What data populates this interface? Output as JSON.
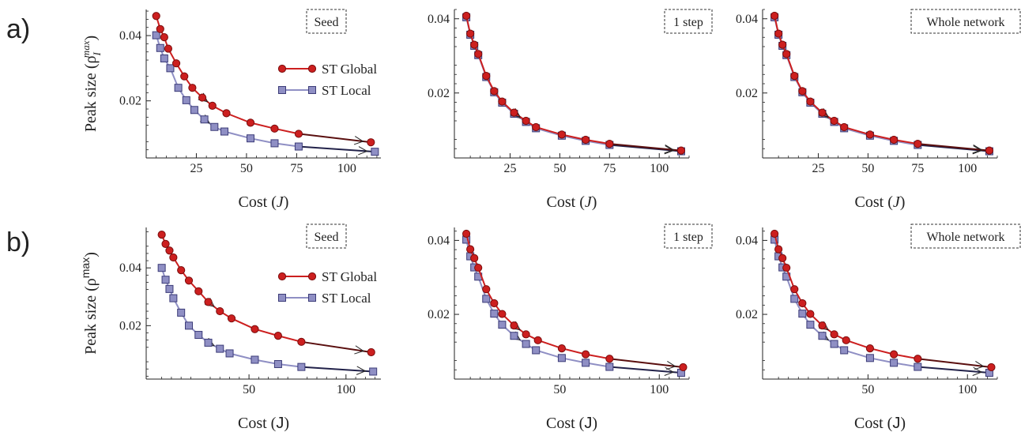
{
  "row_labels": [
    "a)",
    "b)"
  ],
  "colors": {
    "global": "#cc1f1f",
    "global_edge": "#7a0d0d",
    "local": "#8f8fc4",
    "local_edge": "#3c3c78",
    "line_end": "#222222"
  },
  "chart_data": [
    {
      "type": "line",
      "row": "a",
      "panel_label": "Seed",
      "xlabel": "Cost (J)",
      "ylabel": "Peak size (ρ_I^max)",
      "xlim": [
        0,
        117
      ],
      "ylim": [
        0.0025,
        0.048
      ],
      "xticks": [
        25,
        50,
        75,
        100
      ],
      "yticks": [
        0.02,
        0.04
      ],
      "legend": [
        "ST Global",
        "ST Local"
      ],
      "series": [
        {
          "name": "ST Global",
          "x": [
            5,
            7,
            9,
            11,
            15,
            19,
            23,
            28,
            33,
            40,
            52,
            64,
            76,
            112
          ],
          "y": [
            0.046,
            0.042,
            0.0395,
            0.036,
            0.0315,
            0.0275,
            0.024,
            0.021,
            0.0185,
            0.0162,
            0.0133,
            0.0115,
            0.0099,
            0.0073
          ]
        },
        {
          "name": "ST Local",
          "x": [
            5,
            7,
            9,
            12,
            16,
            20,
            24,
            29,
            34,
            39,
            52,
            64,
            76,
            114
          ],
          "y": [
            0.0401,
            0.0362,
            0.033,
            0.03,
            0.024,
            0.0202,
            0.0172,
            0.0143,
            0.012,
            0.0106,
            0.0085,
            0.007,
            0.006,
            0.0044
          ]
        }
      ]
    },
    {
      "type": "line",
      "row": "a",
      "panel_label": "1 step",
      "xlabel": "Cost (J)",
      "ylabel": "",
      "xlim": [
        -3,
        115
      ],
      "ylim": [
        0.0025,
        0.0425
      ],
      "xticks": [
        25,
        50,
        75,
        100
      ],
      "yticks": [
        0.02,
        0.04
      ],
      "series": [
        {
          "name": "ST Global",
          "x": [
            3,
            5,
            7,
            9,
            13,
            17,
            21,
            27,
            33,
            38,
            51,
            63,
            75,
            111
          ],
          "y": [
            0.0408,
            0.036,
            0.033,
            0.0305,
            0.0246,
            0.0205,
            0.0177,
            0.0147,
            0.0125,
            0.0108,
            0.0088,
            0.0074,
            0.0063,
            0.0045
          ]
        },
        {
          "name": "ST Local",
          "x": [
            3,
            5,
            7,
            9,
            13,
            17,
            21,
            27,
            33,
            38,
            51,
            63,
            75,
            111
          ],
          "y": [
            0.0404,
            0.0357,
            0.0327,
            0.0302,
            0.0243,
            0.0202,
            0.0174,
            0.0144,
            0.0122,
            0.0105,
            0.0085,
            0.0071,
            0.006,
            0.0043
          ]
        }
      ]
    },
    {
      "type": "line",
      "row": "a",
      "panel_label": "Whole network",
      "xlabel": "Cost (J)",
      "ylabel": "",
      "xlim": [
        -3,
        115
      ],
      "ylim": [
        0.0025,
        0.0425
      ],
      "xticks": [
        25,
        50,
        75,
        100
      ],
      "yticks": [
        0.02,
        0.04
      ],
      "series": [
        {
          "name": "ST Global",
          "x": [
            3,
            5,
            7,
            9,
            13,
            17,
            21,
            27,
            33,
            38,
            51,
            63,
            75,
            111
          ],
          "y": [
            0.0408,
            0.036,
            0.033,
            0.0305,
            0.0246,
            0.0205,
            0.0177,
            0.0147,
            0.0125,
            0.0108,
            0.0088,
            0.0074,
            0.0063,
            0.0045
          ]
        },
        {
          "name": "ST Local",
          "x": [
            3,
            5,
            7,
            9,
            13,
            17,
            21,
            27,
            33,
            38,
            51,
            63,
            75,
            111
          ],
          "y": [
            0.0404,
            0.0357,
            0.0327,
            0.0302,
            0.0243,
            0.0202,
            0.0174,
            0.0144,
            0.0122,
            0.0105,
            0.0085,
            0.0071,
            0.006,
            0.0043
          ]
        }
      ]
    },
    {
      "type": "line",
      "row": "b",
      "panel_label": "Seed",
      "xlabel": "Cost (J)",
      "ylabel": "Peak size (ρ_I^max)",
      "xlim": [
        -3,
        118
      ],
      "ylim": [
        0.0015,
        0.054
      ],
      "xticks": [
        50,
        100
      ],
      "yticks": [
        0.02,
        0.04
      ],
      "legend": [
        "ST Global",
        "ST Local"
      ],
      "series": [
        {
          "name": "ST Global",
          "x": [
            5,
            7,
            9,
            11,
            15,
            19,
            24,
            29,
            35,
            41,
            53,
            65,
            77,
            113
          ],
          "y": [
            0.0515,
            0.0483,
            0.046,
            0.0436,
            0.0392,
            0.0356,
            0.0319,
            0.0282,
            0.025,
            0.0225,
            0.0188,
            0.0165,
            0.0144,
            0.0108
          ]
        },
        {
          "name": "ST Local",
          "x": [
            5,
            7,
            9,
            11,
            15,
            19,
            24,
            29,
            35,
            40,
            53,
            65,
            77,
            114
          ],
          "y": [
            0.04,
            0.0359,
            0.0327,
            0.0295,
            0.0245,
            0.02,
            0.0168,
            0.0141,
            0.012,
            0.0104,
            0.0082,
            0.0067,
            0.0057,
            0.0041
          ]
        }
      ]
    },
    {
      "type": "line",
      "row": "b",
      "panel_label": "1 step",
      "xlabel": "Cost (J)",
      "ylabel": "",
      "xlim": [
        -3,
        115
      ],
      "ylim": [
        0.0025,
        0.0435
      ],
      "xticks": [
        50,
        100
      ],
      "yticks": [
        0.02,
        0.04
      ],
      "series": [
        {
          "name": "ST Global",
          "x": [
            3,
            5,
            7,
            9,
            13,
            17,
            21,
            27,
            33,
            39,
            51,
            63,
            75,
            112
          ],
          "y": [
            0.0418,
            0.0376,
            0.0352,
            0.0326,
            0.0268,
            0.023,
            0.0201,
            0.017,
            0.0146,
            0.013,
            0.0108,
            0.0092,
            0.008,
            0.0057
          ]
        },
        {
          "name": "ST Local",
          "x": [
            3,
            5,
            7,
            9,
            13,
            17,
            21,
            27,
            33,
            38,
            51,
            63,
            75,
            111
          ],
          "y": [
            0.0402,
            0.0357,
            0.0327,
            0.0302,
            0.0242,
            0.0202,
            0.0172,
            0.0142,
            0.012,
            0.0103,
            0.0082,
            0.0069,
            0.0058,
            0.0042
          ]
        }
      ]
    },
    {
      "type": "line",
      "row": "b",
      "panel_label": "Whole network",
      "xlabel": "Cost (J)",
      "ylabel": "",
      "xlim": [
        -3,
        115
      ],
      "ylim": [
        0.0025,
        0.0435
      ],
      "xticks": [
        50,
        100
      ],
      "yticks": [
        0.02,
        0.04
      ],
      "series": [
        {
          "name": "ST Global",
          "x": [
            3,
            5,
            7,
            9,
            13,
            17,
            21,
            27,
            33,
            39,
            51,
            63,
            75,
            112
          ],
          "y": [
            0.0418,
            0.0376,
            0.0352,
            0.0326,
            0.0268,
            0.023,
            0.0201,
            0.017,
            0.0146,
            0.013,
            0.0108,
            0.0092,
            0.008,
            0.0057
          ]
        },
        {
          "name": "ST Local",
          "x": [
            3,
            5,
            7,
            9,
            13,
            17,
            21,
            27,
            33,
            38,
            51,
            63,
            75,
            111
          ],
          "y": [
            0.0402,
            0.0357,
            0.0327,
            0.0302,
            0.0242,
            0.0202,
            0.0172,
            0.0142,
            0.012,
            0.0103,
            0.0082,
            0.0069,
            0.0058,
            0.0042
          ]
        }
      ]
    }
  ]
}
